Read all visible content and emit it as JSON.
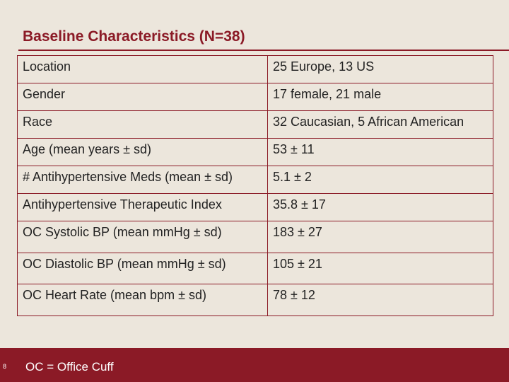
{
  "slide": {
    "title": "Baseline Characteristics (N=38)",
    "page_number": "8",
    "footnote": "OC = Office Cuff"
  },
  "table": {
    "rows": [
      {
        "label": "Location",
        "value": "25 Europe, 13 US"
      },
      {
        "label": "Gender",
        "value": "17 female, 21 male"
      },
      {
        "label": "Race",
        "value": "32 Caucasian, 5 African American"
      },
      {
        "label": "Age (mean years ± sd)",
        "value": "53 ± 11"
      },
      {
        "label": "# Antihypertensive Meds (mean ± sd)",
        "value": "5.1 ± 2"
      },
      {
        "label": "Antihypertensive Therapeutic Index",
        "value": "35.8 ± 17"
      },
      {
        "label": "OC Systolic BP (mean mmHg ± sd)",
        "value": "183 ± 27"
      },
      {
        "label": "OC Diastolic BP (mean mmHg ± sd)",
        "value": "105 ± 21"
      },
      {
        "label": "OC Heart Rate (mean bpm ± sd)",
        "value": "78 ± 12"
      }
    ]
  },
  "colors": {
    "accent": "#8b1a26",
    "background": "#ece6dc"
  }
}
